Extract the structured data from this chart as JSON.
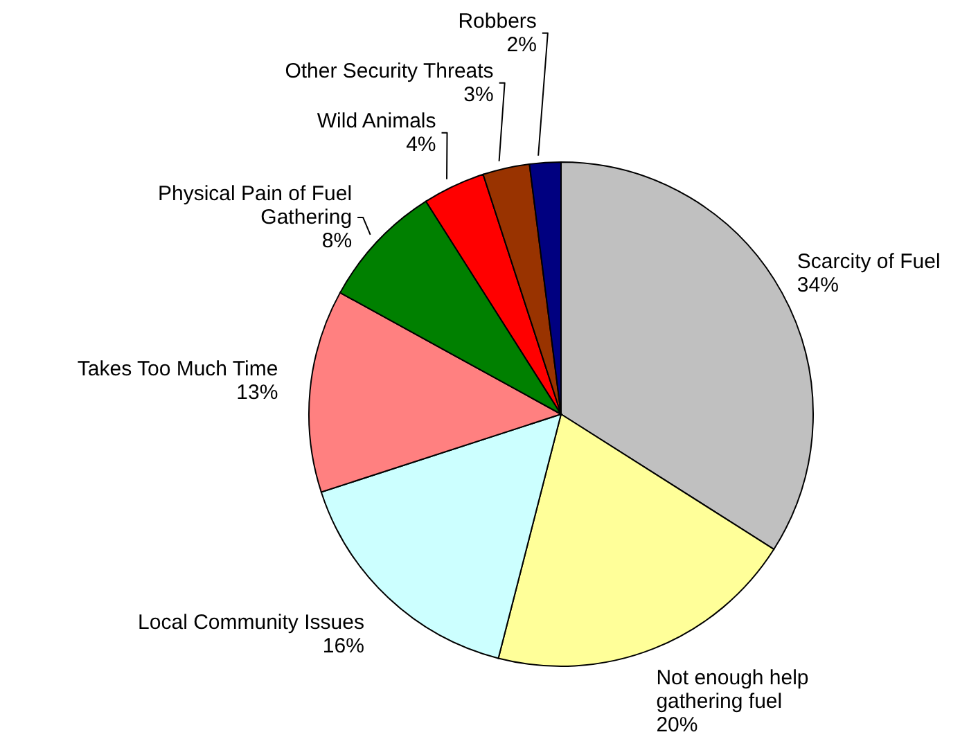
{
  "chart_data": {
    "type": "pie",
    "categories": [
      "Scarcity of Fuel",
      "Not enough help gathering fuel",
      "Local Community Issues",
      "Takes Too Much Time",
      "Physical Pain of Fuel Gathering",
      "Wild Animals",
      "Other Security Threats",
      "Robbers"
    ],
    "values": [
      34,
      20,
      16,
      13,
      8,
      4,
      3,
      2
    ],
    "value_labels": [
      "34%",
      "20%",
      "16%",
      "13%",
      "8%",
      "4%",
      "3%",
      "2%"
    ],
    "colors": [
      "#c0c0c0",
      "#ffff99",
      "#ccffff",
      "#ff8080",
      "#008000",
      "#ff0000",
      "#993300",
      "#000080"
    ],
    "legend": false
  }
}
